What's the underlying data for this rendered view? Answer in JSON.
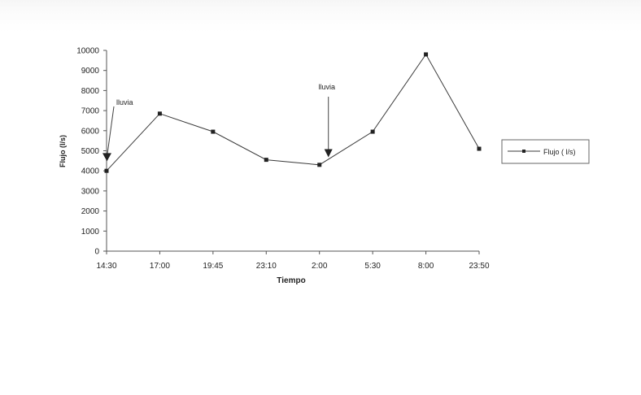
{
  "chart_data": {
    "type": "line",
    "xlabel": "Tiempo",
    "ylabel": "Flujo (l/s)",
    "categories": [
      "14:30",
      "17:00",
      "19:45",
      "23:10",
      "2:00",
      "5:30",
      "8:00",
      "23:50"
    ],
    "yticks": [
      "0",
      "1000",
      "2000",
      "3000",
      "4000",
      "5000",
      "6000",
      "7000",
      "8000",
      "9000",
      "10000"
    ],
    "ylim": [
      0,
      10000
    ],
    "series": [
      {
        "name": "Flujo ( l/s)",
        "values": [
          4000,
          6850,
          5950,
          4550,
          4300,
          5950,
          9800,
          5100
        ]
      }
    ],
    "annotations": [
      {
        "text": "lluvia",
        "category": "14:30",
        "value": 4600
      },
      {
        "text": "lluvia",
        "category": "2:00",
        "value": 4800
      }
    ],
    "legend_position": "right",
    "grid": false,
    "line_color": "#3a3a3a"
  }
}
